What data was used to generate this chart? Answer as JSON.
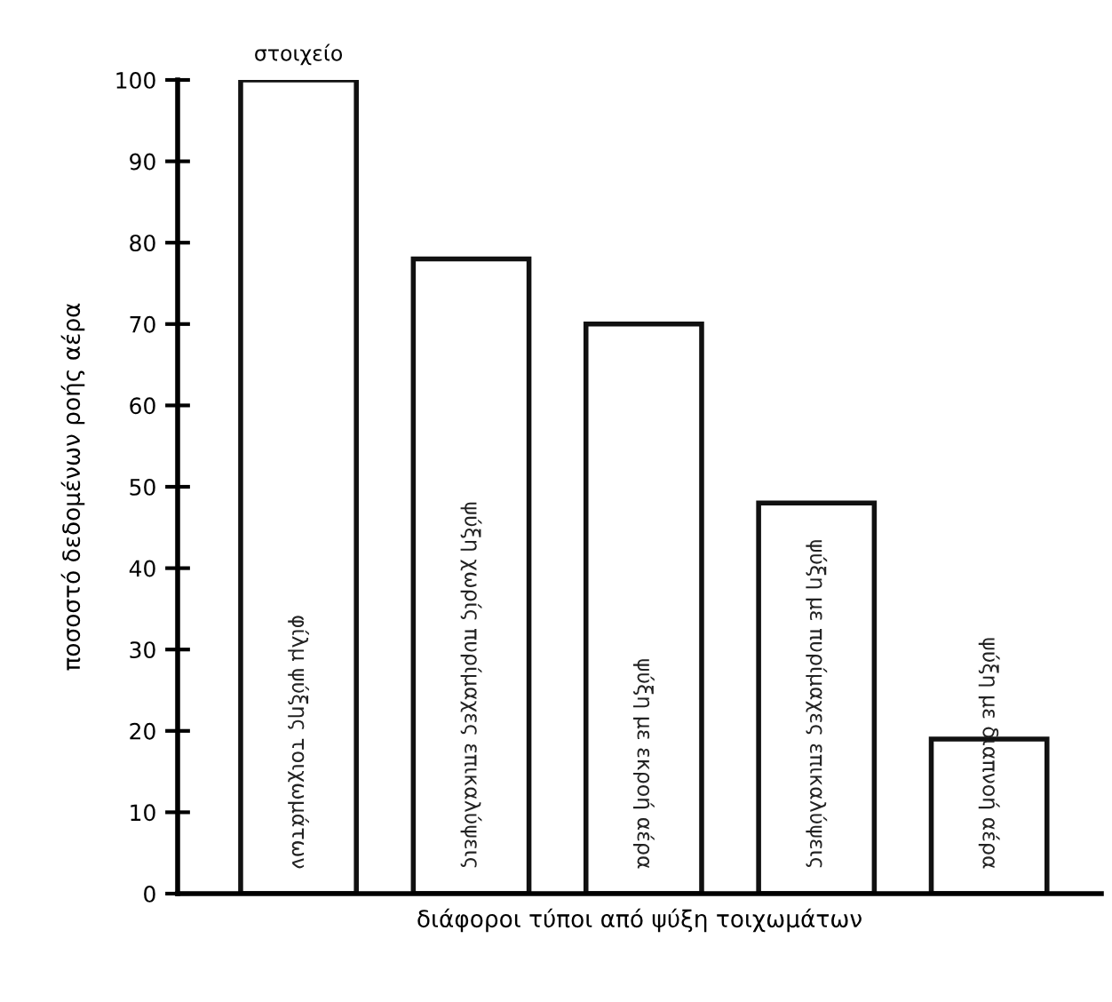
{
  "chart_data": {
    "type": "bar",
    "xlabel": "διάφοροι τύποι από ψύξη τοιχωμάτων",
    "ylabel": "ποσοστό δεδομένων ροής αέρα",
    "categories": [
      "φίλμ ψύξης τοιχωμάτων",
      "ψύξη χωρίς πυρίμαχες επικαλύψεις",
      "ψύξη με εκροή αέρα",
      "ψύξη με πυρίμαχες επικαλύψεις",
      "ψύξη με διαπνοή αέρα"
    ],
    "values": [
      100,
      78,
      70,
      48,
      19
    ],
    "color": "#ffffff",
    "ylim": [
      0,
      100
    ],
    "yticks": [
      0,
      10,
      20,
      30,
      40,
      50,
      60,
      70,
      80,
      90,
      100
    ],
    "grid": false,
    "annotations": [
      {
        "text": "στοιχείο",
        "x": "φίλμ ψύξης τοιχωμάτων",
        "y": 100
      }
    ]
  }
}
